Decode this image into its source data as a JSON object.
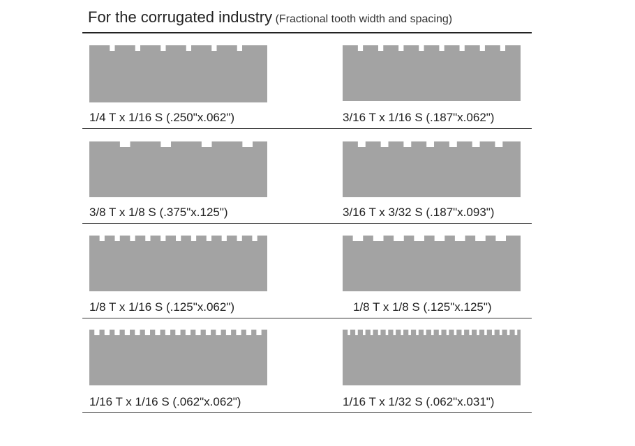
{
  "header": {
    "title": "For the corrugated industry",
    "subtitle": "(Fractional tooth width and spacing)"
  },
  "colors": {
    "blade": "#a3a3a3",
    "text": "#222222",
    "rule": "#333333",
    "background": "#ffffff"
  },
  "blades": [
    {
      "label": "1/4 T x 1/16 S (.250\"x.062\")",
      "tooth_in": 0.25,
      "space_in": 0.062
    },
    {
      "label": "3/16 T x 1/16 S (.187\"x.062\")",
      "tooth_in": 0.187,
      "space_in": 0.062
    },
    {
      "label": "3/8 T x 1/8 S (.375\"x.125\")",
      "tooth_in": 0.375,
      "space_in": 0.125
    },
    {
      "label": "3/16 T x 3/32 S (.187\"x.093\")",
      "tooth_in": 0.187,
      "space_in": 0.093
    },
    {
      "label": "1/8 T x 1/16 S (.125\"x.062\")",
      "tooth_in": 0.125,
      "space_in": 0.062
    },
    {
      "label": "1/8 T x 1/8 S (.125\"x.125\")",
      "tooth_in": 0.125,
      "space_in": 0.125
    },
    {
      "label": "1/16 T x 1/16 S (.062\"x.062\")",
      "tooth_in": 0.062,
      "space_in": 0.062
    },
    {
      "label": "1/16 T x 1/32 S (.062\"x.031\")",
      "tooth_in": 0.062,
      "space_in": 0.031
    }
  ]
}
